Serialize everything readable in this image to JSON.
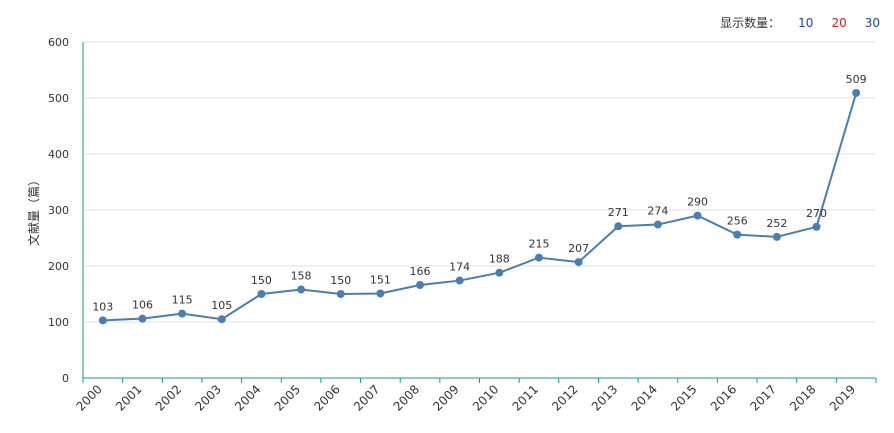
{
  "controls": {
    "count_label": "显示数量：",
    "options": [
      "10",
      "20",
      "30"
    ],
    "option_colors": [
      "#1a3fd0",
      "#e02020",
      "#1a3fd0"
    ]
  },
  "chart_data": {
    "type": "line",
    "ylabel": "文献量（篇）",
    "xlabel": "",
    "ylim": [
      0,
      600
    ],
    "yticks": [
      0,
      100,
      200,
      300,
      400,
      500,
      600
    ],
    "grid": true,
    "line_color": "#4a7eb0",
    "axis_color": "#1a9a8a",
    "categories": [
      "2000",
      "2001",
      "2002",
      "2003",
      "2004",
      "2005",
      "2006",
      "2007",
      "2008",
      "2009",
      "2010",
      "2011",
      "2012",
      "2013",
      "2014",
      "2015",
      "2016",
      "2017",
      "2018",
      "2019"
    ],
    "values": [
      103,
      106,
      115,
      105,
      150,
      158,
      150,
      151,
      166,
      174,
      188,
      215,
      207,
      271,
      274,
      290,
      256,
      252,
      270,
      509
    ]
  }
}
